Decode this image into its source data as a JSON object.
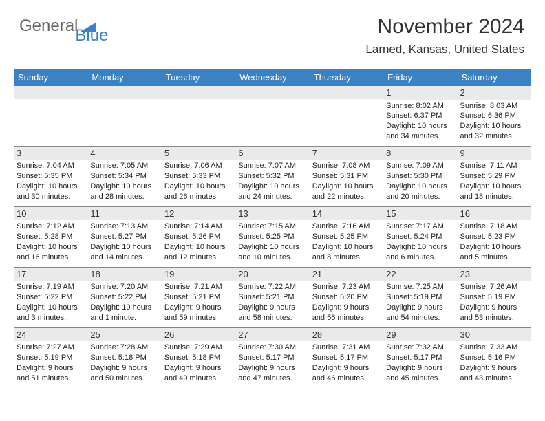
{
  "logo": {
    "text1": "General",
    "text2": "Blue"
  },
  "title": "November 2024",
  "location": "Larned, Kansas, United States",
  "colors": {
    "header_bg": "#3b82c4",
    "header_text": "#ffffff",
    "daynum_bg": "#eaeaea",
    "border": "#888888",
    "text": "#222222"
  },
  "day_headers": [
    "Sunday",
    "Monday",
    "Tuesday",
    "Wednesday",
    "Thursday",
    "Friday",
    "Saturday"
  ],
  "weeks": [
    [
      null,
      null,
      null,
      null,
      null,
      {
        "n": "1",
        "sr": "Sunrise: 8:02 AM",
        "ss": "Sunset: 6:37 PM",
        "dl": "Daylight: 10 hours and 34 minutes."
      },
      {
        "n": "2",
        "sr": "Sunrise: 8:03 AM",
        "ss": "Sunset: 6:36 PM",
        "dl": "Daylight: 10 hours and 32 minutes."
      }
    ],
    [
      {
        "n": "3",
        "sr": "Sunrise: 7:04 AM",
        "ss": "Sunset: 5:35 PM",
        "dl": "Daylight: 10 hours and 30 minutes."
      },
      {
        "n": "4",
        "sr": "Sunrise: 7:05 AM",
        "ss": "Sunset: 5:34 PM",
        "dl": "Daylight: 10 hours and 28 minutes."
      },
      {
        "n": "5",
        "sr": "Sunrise: 7:06 AM",
        "ss": "Sunset: 5:33 PM",
        "dl": "Daylight: 10 hours and 26 minutes."
      },
      {
        "n": "6",
        "sr": "Sunrise: 7:07 AM",
        "ss": "Sunset: 5:32 PM",
        "dl": "Daylight: 10 hours and 24 minutes."
      },
      {
        "n": "7",
        "sr": "Sunrise: 7:08 AM",
        "ss": "Sunset: 5:31 PM",
        "dl": "Daylight: 10 hours and 22 minutes."
      },
      {
        "n": "8",
        "sr": "Sunrise: 7:09 AM",
        "ss": "Sunset: 5:30 PM",
        "dl": "Daylight: 10 hours and 20 minutes."
      },
      {
        "n": "9",
        "sr": "Sunrise: 7:11 AM",
        "ss": "Sunset: 5:29 PM",
        "dl": "Daylight: 10 hours and 18 minutes."
      }
    ],
    [
      {
        "n": "10",
        "sr": "Sunrise: 7:12 AM",
        "ss": "Sunset: 5:28 PM",
        "dl": "Daylight: 10 hours and 16 minutes."
      },
      {
        "n": "11",
        "sr": "Sunrise: 7:13 AM",
        "ss": "Sunset: 5:27 PM",
        "dl": "Daylight: 10 hours and 14 minutes."
      },
      {
        "n": "12",
        "sr": "Sunrise: 7:14 AM",
        "ss": "Sunset: 5:26 PM",
        "dl": "Daylight: 10 hours and 12 minutes."
      },
      {
        "n": "13",
        "sr": "Sunrise: 7:15 AM",
        "ss": "Sunset: 5:25 PM",
        "dl": "Daylight: 10 hours and 10 minutes."
      },
      {
        "n": "14",
        "sr": "Sunrise: 7:16 AM",
        "ss": "Sunset: 5:25 PM",
        "dl": "Daylight: 10 hours and 8 minutes."
      },
      {
        "n": "15",
        "sr": "Sunrise: 7:17 AM",
        "ss": "Sunset: 5:24 PM",
        "dl": "Daylight: 10 hours and 6 minutes."
      },
      {
        "n": "16",
        "sr": "Sunrise: 7:18 AM",
        "ss": "Sunset: 5:23 PM",
        "dl": "Daylight: 10 hours and 5 minutes."
      }
    ],
    [
      {
        "n": "17",
        "sr": "Sunrise: 7:19 AM",
        "ss": "Sunset: 5:22 PM",
        "dl": "Daylight: 10 hours and 3 minutes."
      },
      {
        "n": "18",
        "sr": "Sunrise: 7:20 AM",
        "ss": "Sunset: 5:22 PM",
        "dl": "Daylight: 10 hours and 1 minute."
      },
      {
        "n": "19",
        "sr": "Sunrise: 7:21 AM",
        "ss": "Sunset: 5:21 PM",
        "dl": "Daylight: 9 hours and 59 minutes."
      },
      {
        "n": "20",
        "sr": "Sunrise: 7:22 AM",
        "ss": "Sunset: 5:21 PM",
        "dl": "Daylight: 9 hours and 58 minutes."
      },
      {
        "n": "21",
        "sr": "Sunrise: 7:23 AM",
        "ss": "Sunset: 5:20 PM",
        "dl": "Daylight: 9 hours and 56 minutes."
      },
      {
        "n": "22",
        "sr": "Sunrise: 7:25 AM",
        "ss": "Sunset: 5:19 PM",
        "dl": "Daylight: 9 hours and 54 minutes."
      },
      {
        "n": "23",
        "sr": "Sunrise: 7:26 AM",
        "ss": "Sunset: 5:19 PM",
        "dl": "Daylight: 9 hours and 53 minutes."
      }
    ],
    [
      {
        "n": "24",
        "sr": "Sunrise: 7:27 AM",
        "ss": "Sunset: 5:19 PM",
        "dl": "Daylight: 9 hours and 51 minutes."
      },
      {
        "n": "25",
        "sr": "Sunrise: 7:28 AM",
        "ss": "Sunset: 5:18 PM",
        "dl": "Daylight: 9 hours and 50 minutes."
      },
      {
        "n": "26",
        "sr": "Sunrise: 7:29 AM",
        "ss": "Sunset: 5:18 PM",
        "dl": "Daylight: 9 hours and 49 minutes."
      },
      {
        "n": "27",
        "sr": "Sunrise: 7:30 AM",
        "ss": "Sunset: 5:17 PM",
        "dl": "Daylight: 9 hours and 47 minutes."
      },
      {
        "n": "28",
        "sr": "Sunrise: 7:31 AM",
        "ss": "Sunset: 5:17 PM",
        "dl": "Daylight: 9 hours and 46 minutes."
      },
      {
        "n": "29",
        "sr": "Sunrise: 7:32 AM",
        "ss": "Sunset: 5:17 PM",
        "dl": "Daylight: 9 hours and 45 minutes."
      },
      {
        "n": "30",
        "sr": "Sunrise: 7:33 AM",
        "ss": "Sunset: 5:16 PM",
        "dl": "Daylight: 9 hours and 43 minutes."
      }
    ]
  ]
}
